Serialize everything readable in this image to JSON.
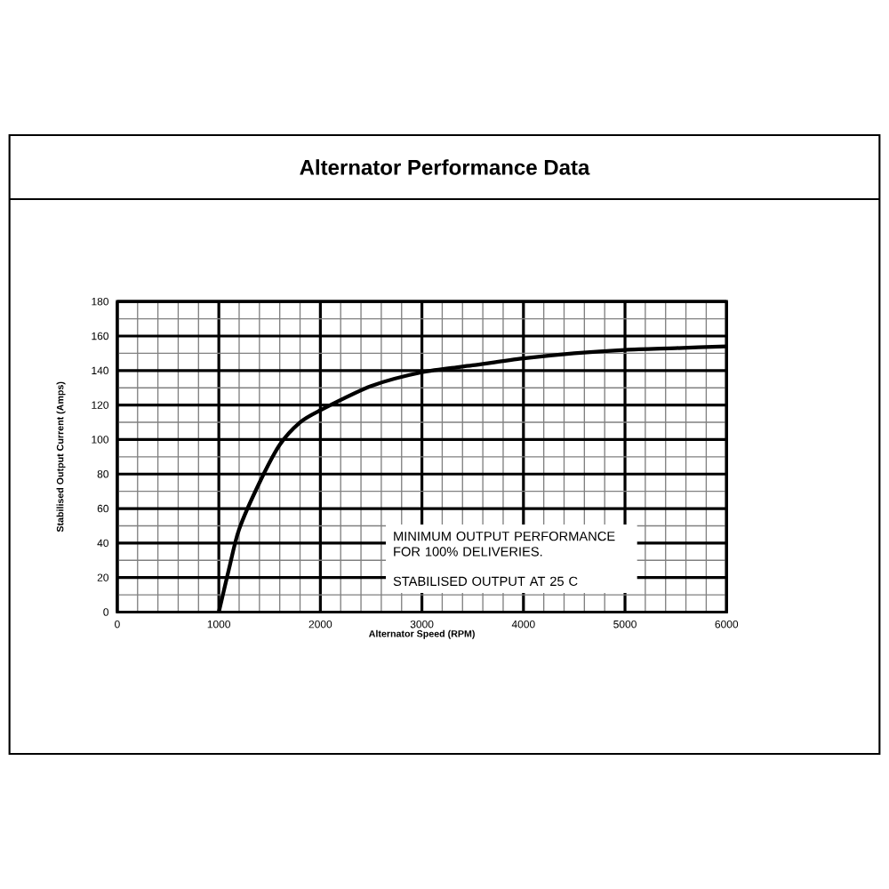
{
  "chart_data": {
    "type": "line",
    "title": "Alternator Performance Data",
    "xlabel": "Alternator Speed (RPM)",
    "ylabel": "Stabilised Output Current (Amps)",
    "x": [
      1000,
      1100,
      1200,
      1400,
      1600,
      1800,
      2000,
      2500,
      3000,
      3500,
      4000,
      4500,
      5000,
      5500,
      6000
    ],
    "series": [
      {
        "color": "#000000",
        "values": [
          0,
          25,
          48,
          75,
          97,
          110,
          117,
          131,
          139,
          143,
          147,
          150,
          152,
          153,
          154
        ]
      }
    ],
    "xlim": [
      0,
      6000
    ],
    "ylim": [
      0,
      180
    ],
    "xticks": [
      0,
      1000,
      2000,
      3000,
      4000,
      5000,
      6000
    ],
    "yticks": [
      0,
      20,
      40,
      60,
      80,
      100,
      120,
      140,
      160,
      180
    ],
    "grid": true,
    "marker": "none",
    "line_style": "solid",
    "annotations": [
      "MINIMUM OUTPUT PERFORMANCE\nFOR 100% DELIVERIES.",
      "STABILISED OUTPUT AT 25 C"
    ]
  }
}
